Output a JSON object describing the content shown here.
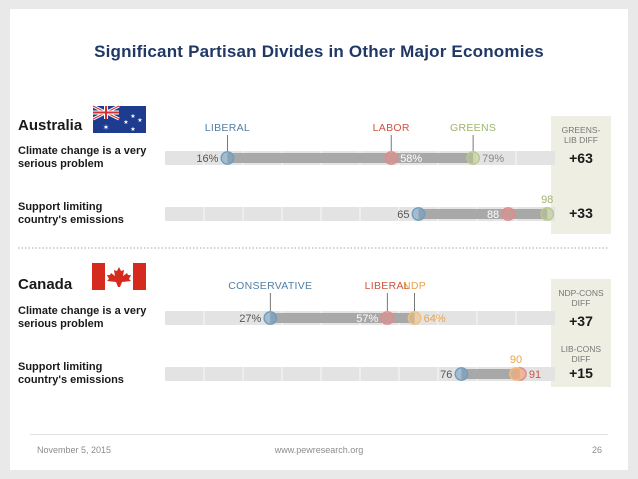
{
  "title": "Significant Partisan Divides in Other Major Economies",
  "footer": {
    "date": "November 5, 2015",
    "url": "www.pewresearch.org",
    "page": "26"
  },
  "colors": {
    "liberal_au": "#6f9cbf",
    "labor": "#e58a88",
    "greens": "#b9c98c",
    "conservative": "#6f9cbf",
    "liberal_ca": "#e58a88",
    "ndp": "#f2be7d",
    "track": "#e3e3e3",
    "range": "#a8a8a8",
    "diff_box": "#efeee3"
  },
  "chart_data": [
    {
      "type": "dot-range",
      "country": "Australia",
      "flag": "australia-flag",
      "party_labels": [
        "LIBERAL",
        "LABOR",
        "GREENS"
      ],
      "xlim": [
        0,
        100
      ],
      "rows": [
        {
          "question": [
            "Climate change is a very",
            "serious problem"
          ],
          "values": [
            16,
            58,
            79
          ],
          "value_labels": [
            "16%",
            "58%",
            "79%"
          ],
          "diff_header": [
            "GREENS-",
            "LIB DIFF"
          ],
          "diff": "+63"
        },
        {
          "question": [
            "Support limiting",
            "country's emissions"
          ],
          "values": [
            65,
            88,
            98
          ],
          "value_labels": [
            "65",
            "88",
            "98"
          ],
          "diff": "+33"
        }
      ]
    },
    {
      "type": "dot-range",
      "country": "Canada",
      "flag": "canada-flag",
      "party_labels": [
        "CONSERVATIVE",
        "LIBERAL",
        "NDP"
      ],
      "xlim": [
        0,
        100
      ],
      "rows": [
        {
          "question": [
            "Climate change is a very",
            "serious problem"
          ],
          "values": [
            27,
            57,
            64
          ],
          "value_labels": [
            "27%",
            "57%",
            "64%"
          ],
          "diff_header": [
            "NDP-CONS",
            "DIFF"
          ],
          "diff": "+37"
        },
        {
          "question": [
            "Support limiting",
            "country's emissions"
          ],
          "values": [
            76,
            91,
            90
          ],
          "value_labels": [
            "76",
            "91",
            "90"
          ],
          "diff_header": [
            "LIB-CONS",
            "DIFF"
          ],
          "diff": "+15"
        }
      ]
    }
  ]
}
